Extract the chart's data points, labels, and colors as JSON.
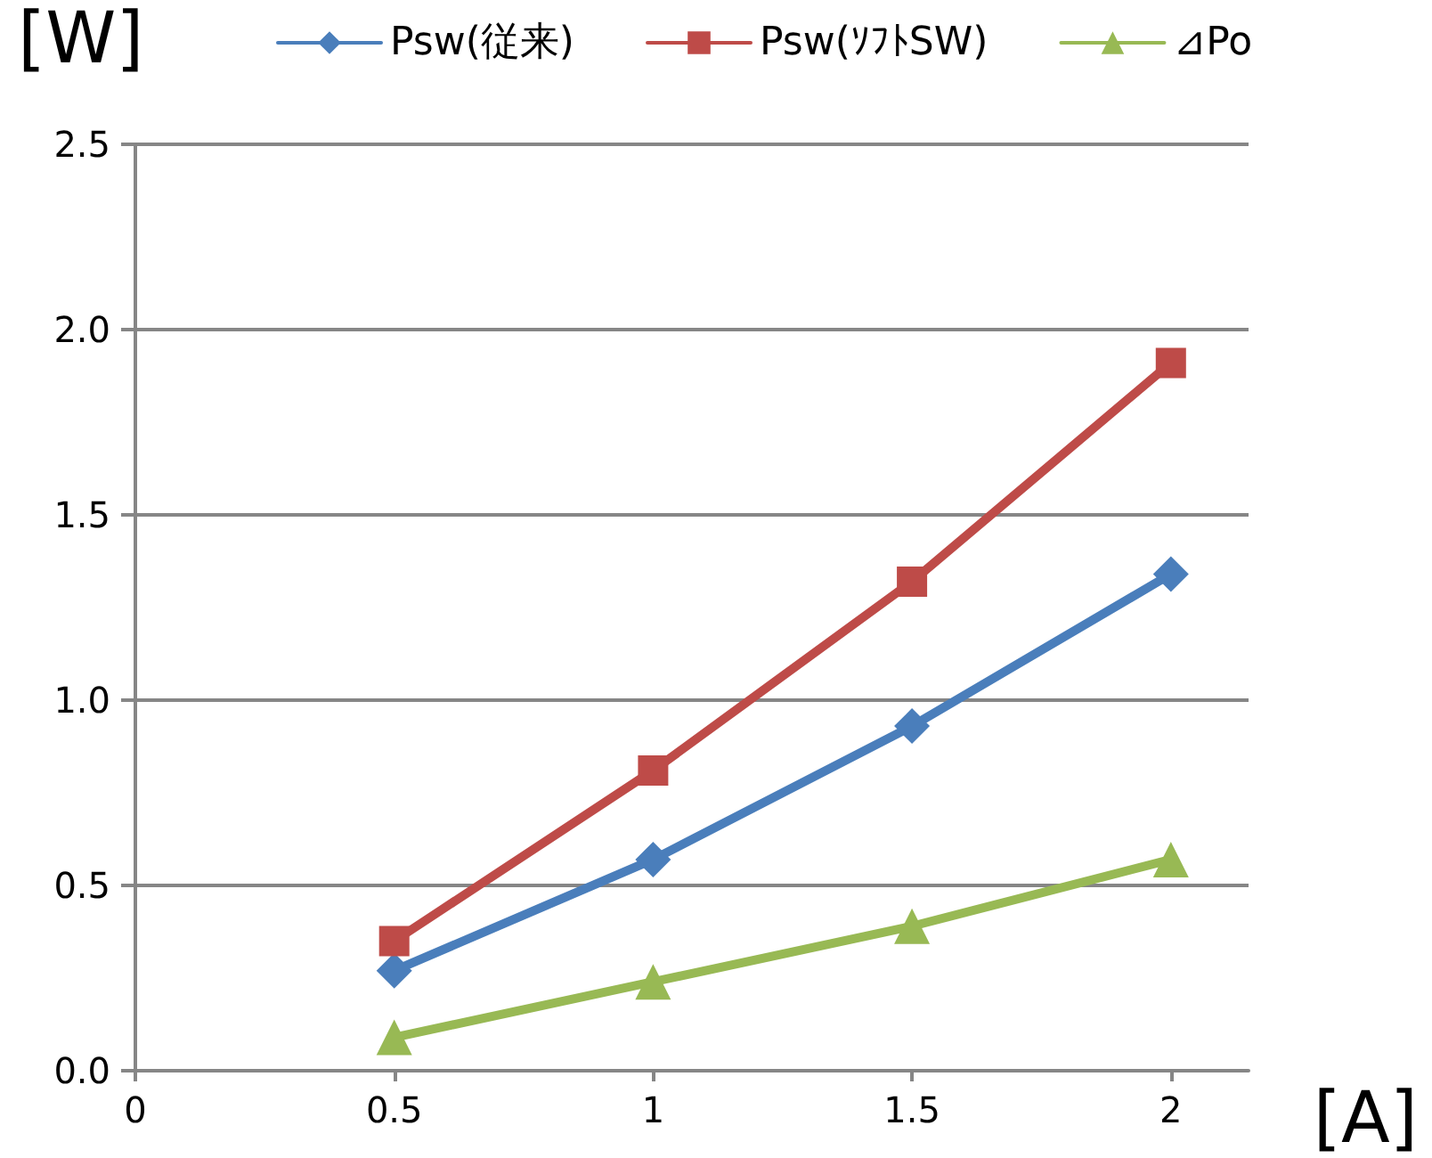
{
  "chart_data": {
    "type": "line",
    "x": [
      0.5,
      1,
      1.5,
      2
    ],
    "series": [
      {
        "name": "Psw(従来)",
        "color": "#4a7ebb",
        "marker": "diamond",
        "values": [
          0.27,
          0.57,
          0.93,
          1.34
        ]
      },
      {
        "name": "Psw(ｿﾌﾄSW)",
        "color": "#be4b48",
        "marker": "square",
        "values": [
          0.35,
          0.81,
          1.32,
          1.91
        ]
      },
      {
        "name": "⊿Po",
        "color": "#98b954",
        "marker": "triangle",
        "values": [
          0.09,
          0.24,
          0.39,
          0.57
        ]
      }
    ],
    "xlabel": "[A]",
    "ylabel": "[W]",
    "xlim": [
      0,
      2.15
    ],
    "xticks": [
      0,
      0.5,
      1,
      1.5,
      2
    ],
    "ylim": [
      0,
      2.5
    ],
    "yticks": [
      {
        "value": 0,
        "label": "0.0"
      },
      {
        "value": 0.5,
        "label": "0.5"
      },
      {
        "value": 1,
        "label": "1.0"
      },
      {
        "value": 1.5,
        "label": "1.5"
      },
      {
        "value": 2,
        "label": "2.0"
      },
      {
        "value": 2.5,
        "label": "2.5"
      }
    ],
    "grid": "y",
    "legend": "top",
    "line_style": "solid"
  }
}
